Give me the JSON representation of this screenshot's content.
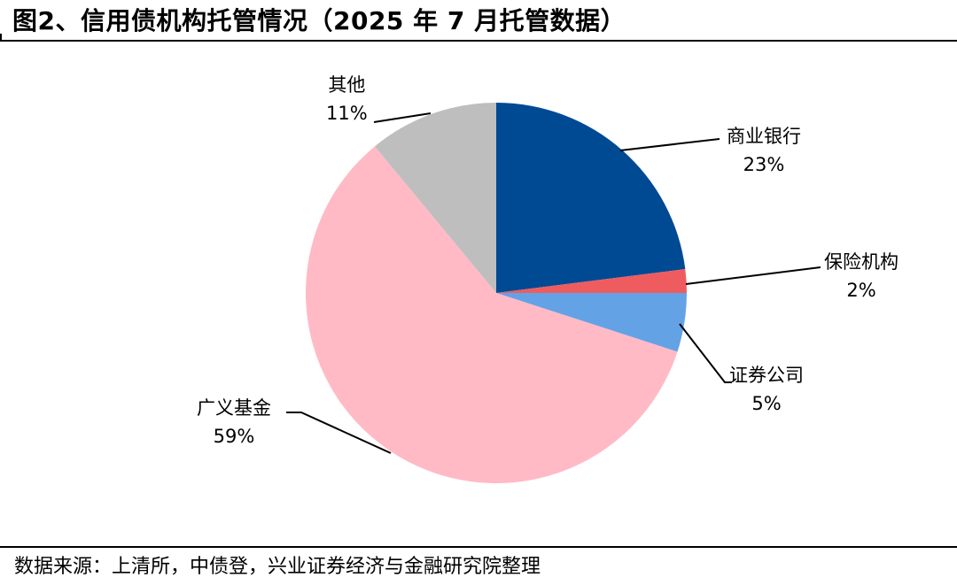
{
  "title": "图2、信用债机构托管情况（2025 年 7 月托管数据）",
  "source": "数据来源：上清所，中债登，兴业证券经济与金融研究院整理",
  "chart_data": {
    "type": "pie",
    "title": "图2、信用债机构托管情况（2025 年 7 月托管数据）",
    "start": "12 o'clock, clockwise",
    "legend": "none (direct labels)",
    "slices": [
      {
        "label": "商业银行",
        "value": 23,
        "value_label": "23%",
        "color": "#004A94"
      },
      {
        "label": "保险机构",
        "value": 2,
        "value_label": "2%",
        "color": "#EE5C5F"
      },
      {
        "label": "证券公司",
        "value": 5,
        "value_label": "5%",
        "color": "#64A2E6"
      },
      {
        "label": "广义基金",
        "value": 59,
        "value_label": "59%",
        "color": "#FFBAC6"
      },
      {
        "label": "其他",
        "value": 11,
        "value_label": "11%",
        "color": "#BEBEBE"
      }
    ]
  }
}
